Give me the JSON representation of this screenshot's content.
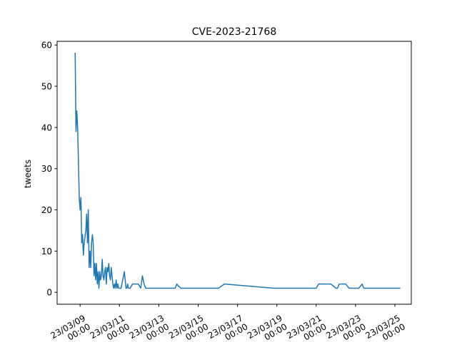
{
  "chart_data": {
    "type": "line",
    "title": "CVE-2023-21768",
    "xlabel": "",
    "ylabel": "tweets",
    "ylim": [
      -2.9,
      60.9
    ],
    "xlim": [
      "2023-03-07T20:00",
      "2023-03-25T20:00"
    ],
    "grid": false,
    "x_tick_labels": [
      "23/03/09\n00:00",
      "23/03/11\n00:00",
      "23/03/13\n00:00",
      "23/03/15\n00:00",
      "23/03/17\n00:00",
      "23/03/19\n00:00",
      "23/03/21\n00:00",
      "23/03/23\n00:00",
      "23/03/25\n00:00"
    ],
    "y_ticks": [
      0,
      10,
      20,
      30,
      40,
      50,
      60
    ],
    "series": [
      {
        "color": "#1f77b4",
        "points": [
          [
            "2023-03-08T18:00",
            58
          ],
          [
            "2023-03-08T19:00",
            39
          ],
          [
            "2023-03-08T20:00",
            44
          ],
          [
            "2023-03-08T21:00",
            40
          ],
          [
            "2023-03-08T23:00",
            23
          ],
          [
            "2023-03-09T00:00",
            20
          ],
          [
            "2023-03-09T01:00",
            23
          ],
          [
            "2023-03-09T02:00",
            12
          ],
          [
            "2023-03-09T03:00",
            14
          ],
          [
            "2023-03-09T04:00",
            9
          ],
          [
            "2023-03-09T05:00",
            12
          ],
          [
            "2023-03-09T07:00",
            15
          ],
          [
            "2023-03-09T08:00",
            19
          ],
          [
            "2023-03-09T09:00",
            12
          ],
          [
            "2023-03-09T10:00",
            20
          ],
          [
            "2023-03-09T11:00",
            6
          ],
          [
            "2023-03-09T12:00",
            10
          ],
          [
            "2023-03-09T13:00",
            6
          ],
          [
            "2023-03-09T14:00",
            12
          ],
          [
            "2023-03-09T15:00",
            14
          ],
          [
            "2023-03-09T16:00",
            12
          ],
          [
            "2023-03-09T17:00",
            4
          ],
          [
            "2023-03-09T18:00",
            7
          ],
          [
            "2023-03-09T19:00",
            3
          ],
          [
            "2023-03-09T20:00",
            7
          ],
          [
            "2023-03-09T21:00",
            2
          ],
          [
            "2023-03-09T22:00",
            5
          ],
          [
            "2023-03-09T23:00",
            1
          ],
          [
            "2023-03-10T00:00",
            5
          ],
          [
            "2023-03-10T01:00",
            3
          ],
          [
            "2023-03-10T02:00",
            4
          ],
          [
            "2023-03-10T03:00",
            8
          ],
          [
            "2023-03-10T04:00",
            4
          ],
          [
            "2023-03-10T05:00",
            3
          ],
          [
            "2023-03-10T06:00",
            5
          ],
          [
            "2023-03-10T07:00",
            6
          ],
          [
            "2023-03-10T08:00",
            2
          ],
          [
            "2023-03-10T09:00",
            6
          ],
          [
            "2023-03-10T10:00",
            5
          ],
          [
            "2023-03-10T11:00",
            7
          ],
          [
            "2023-03-10T12:00",
            4
          ],
          [
            "2023-03-10T13:00",
            3
          ],
          [
            "2023-03-10T14:00",
            6
          ],
          [
            "2023-03-10T15:00",
            4
          ],
          [
            "2023-03-10T16:00",
            2
          ],
          [
            "2023-03-10T17:00",
            1
          ],
          [
            "2023-03-10T18:00",
            2
          ],
          [
            "2023-03-10T19:00",
            1
          ],
          [
            "2023-03-10T20:00",
            3
          ],
          [
            "2023-03-10T21:00",
            1
          ],
          [
            "2023-03-10T22:00",
            2
          ],
          [
            "2023-03-10T23:00",
            1
          ],
          [
            "2023-03-11T02:00",
            1
          ],
          [
            "2023-03-11T04:00",
            3
          ],
          [
            "2023-03-11T06:00",
            5
          ],
          [
            "2023-03-11T07:00",
            3
          ],
          [
            "2023-03-11T08:00",
            1
          ],
          [
            "2023-03-11T09:00",
            1
          ],
          [
            "2023-03-11T10:00",
            2
          ],
          [
            "2023-03-11T11:00",
            1
          ],
          [
            "2023-03-11T13:00",
            1
          ],
          [
            "2023-03-11T16:00",
            2
          ],
          [
            "2023-03-11T20:00",
            2
          ],
          [
            "2023-03-11T23:00",
            2
          ],
          [
            "2023-03-12T02:00",
            1
          ],
          [
            "2023-03-12T04:00",
            4
          ],
          [
            "2023-03-12T06:00",
            2
          ],
          [
            "2023-03-12T08:00",
            1
          ],
          [
            "2023-03-12T12:00",
            1
          ],
          [
            "2023-03-13T20:00",
            1
          ],
          [
            "2023-03-13T22:00",
            2
          ],
          [
            "2023-03-14T00:00",
            1.5
          ],
          [
            "2023-03-14T03:00",
            1
          ],
          [
            "2023-03-16T01:00",
            1
          ],
          [
            "2023-03-16T08:00",
            2
          ],
          [
            "2023-03-18T20:00",
            1
          ],
          [
            "2023-03-21T00:00",
            1
          ],
          [
            "2023-03-21T03:00",
            2
          ],
          [
            "2023-03-21T18:00",
            2
          ],
          [
            "2023-03-22T00:00",
            1
          ],
          [
            "2023-03-22T02:00",
            1
          ],
          [
            "2023-03-22T04:00",
            2
          ],
          [
            "2023-03-22T12:00",
            2
          ],
          [
            "2023-03-22T16:00",
            1
          ],
          [
            "2023-03-23T04:00",
            1
          ],
          [
            "2023-03-23T08:00",
            2
          ],
          [
            "2023-03-23T10:00",
            1
          ],
          [
            "2023-03-24T00:00",
            1
          ],
          [
            "2023-03-25T00:00",
            1
          ],
          [
            "2023-03-25T06:00",
            1
          ]
        ]
      }
    ]
  }
}
